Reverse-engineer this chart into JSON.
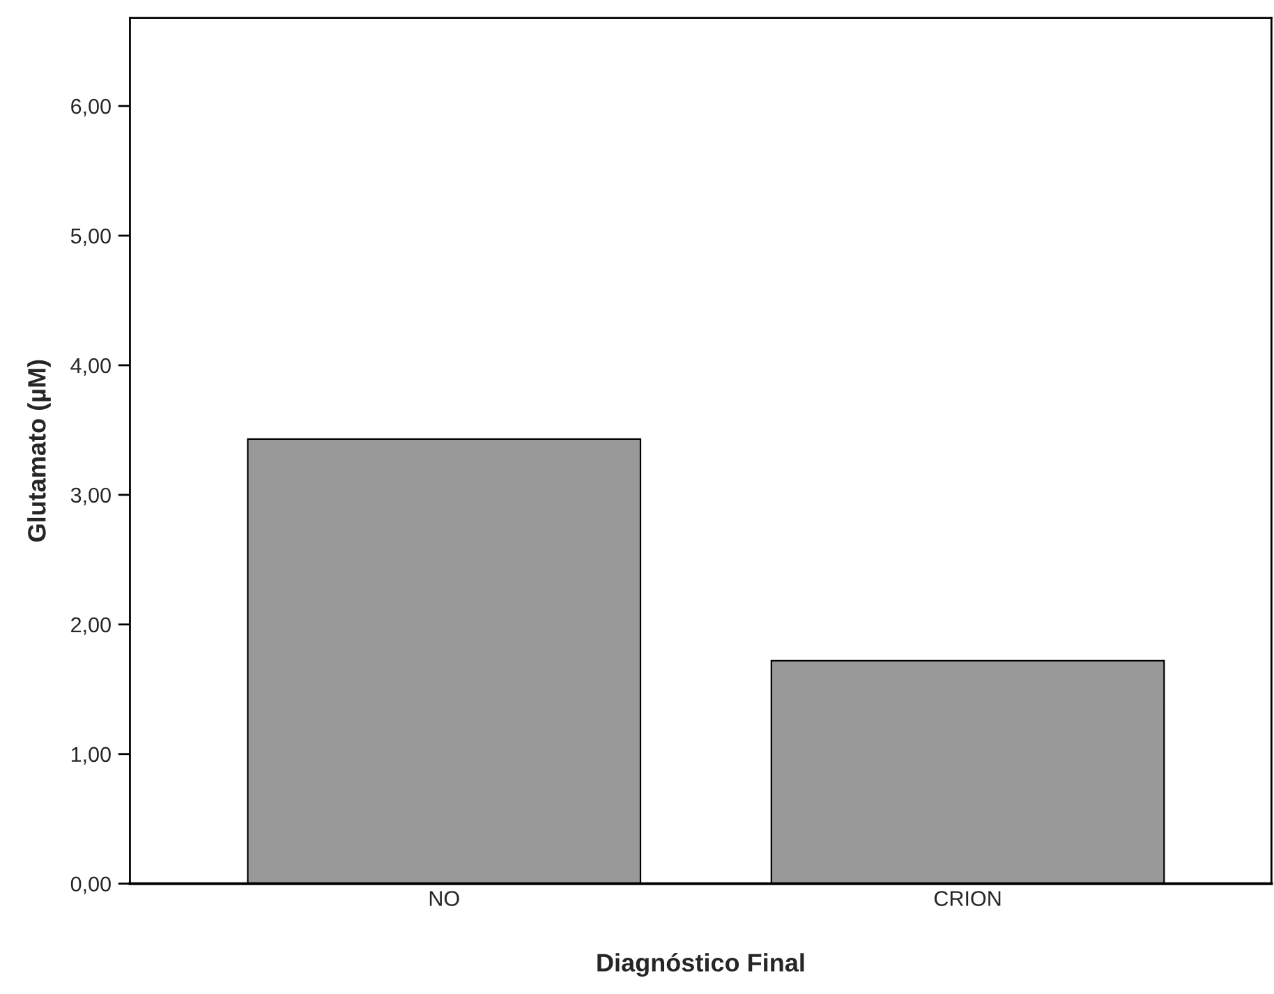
{
  "chart_data": {
    "type": "bar",
    "xlabel": "Diagnóstico Final",
    "ylabel": "Glutamato (µM)",
    "categories": [
      "NO",
      "CRION"
    ],
    "values": [
      3.43,
      1.72
    ],
    "color": "#999999",
    "ylim": [
      0,
      6.68
    ],
    "yticks": [
      {
        "value": 0,
        "label": "0,00"
      },
      {
        "value": 1,
        "label": "1,00"
      },
      {
        "value": 2,
        "label": "2,00"
      },
      {
        "value": 3,
        "label": "3,00"
      },
      {
        "value": 4,
        "label": "4,00"
      },
      {
        "value": 5,
        "label": "5,00"
      },
      {
        "value": 6,
        "label": "6,00"
      }
    ],
    "grid": false,
    "legend": false
  }
}
